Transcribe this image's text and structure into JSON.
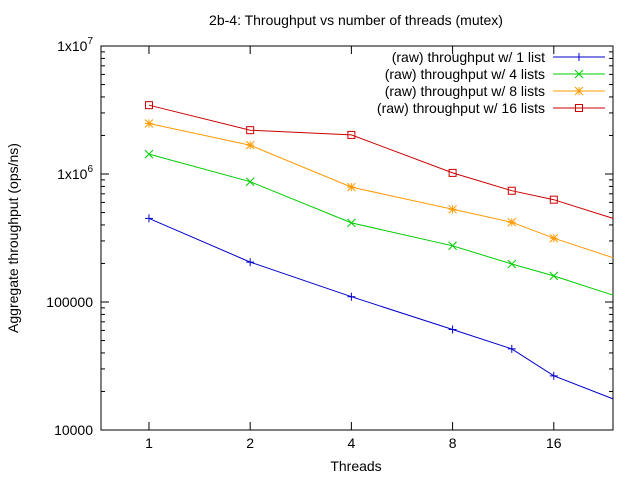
{
  "chart_data": {
    "type": "line",
    "title": "2b-4: Throughput vs number of threads (mutex)",
    "xlabel": "Threads",
    "ylabel": "Aggregate throughput (ops/ns)",
    "x_scale": "log2",
    "y_scale": "log10",
    "xlim": [
      0.72,
      24
    ],
    "ylim": [
      10000,
      10000000
    ],
    "x_ticks": [
      {
        "value": 1,
        "label": "1"
      },
      {
        "value": 2,
        "label": "2"
      },
      {
        "value": 4,
        "label": "4"
      },
      {
        "value": 8,
        "label": "8"
      },
      {
        "value": 16,
        "label": "16"
      }
    ],
    "y_ticks": [
      {
        "value": 10000,
        "label": "10000",
        "sup": ""
      },
      {
        "value": 100000,
        "label": "100000",
        "sup": ""
      },
      {
        "value": 1000000,
        "label": "1x10",
        "sup": "6"
      },
      {
        "value": 10000000,
        "label": "1x10",
        "sup": "7"
      }
    ],
    "x": [
      1,
      2,
      4,
      8,
      12,
      16,
      24
    ],
    "legend_position": "top-right",
    "grid": false,
    "series": [
      {
        "name": "(raw) throughput w/ 1 list",
        "color": "#0000cc",
        "marker": "plus",
        "values": [
          450000,
          205000,
          110000,
          61000,
          43000,
          26500,
          17500
        ]
      },
      {
        "name": "(raw) throughput w/ 4 lists",
        "color": "#00cc00",
        "marker": "cross",
        "values": [
          1430000,
          870000,
          415000,
          275000,
          198000,
          160000,
          113000
        ]
      },
      {
        "name": "(raw) throughput w/ 8 lists",
        "color": "#ff9900",
        "marker": "star",
        "values": [
          2480000,
          1680000,
          790000,
          530000,
          420000,
          315000,
          222000
        ]
      },
      {
        "name": "(raw) throughput w/ 16 lists",
        "color": "#cc0000",
        "marker": "square",
        "values": [
          3450000,
          2200000,
          2020000,
          1020000,
          740000,
          630000,
          450000
        ]
      }
    ]
  }
}
